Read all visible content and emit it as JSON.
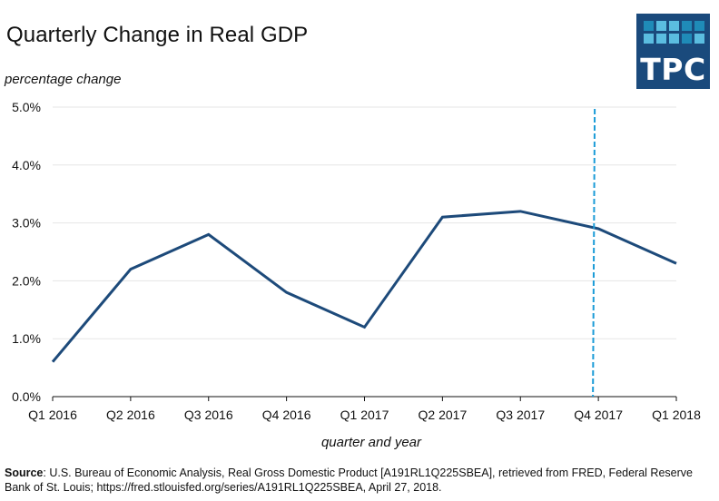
{
  "header": {
    "title": "Quarterly Change in Real GDP",
    "logo_text": "TPC",
    "logo_bg": "#1a4a7c",
    "logo_cells": [
      "#1f8bb8",
      "#5bbde0",
      "#5bbde0",
      "#1f8bb8",
      "#1f8bb8",
      "#5bbde0",
      "#5bbde0",
      "#5bbde0",
      "#1f8bb8",
      "#5bbde0"
    ]
  },
  "footer": {
    "source_label": "Source",
    "source_text": ": U.S. Bureau of Economic Analysis, Real Gross Domestic Product [A191RL1Q225SBEA], retrieved from FRED, Federal Reserve Bank of St. Louis; https://fred.stlouisfed.org/series/A191RL1Q225SBEA, April 27, 2018."
  },
  "chart_data": {
    "type": "line",
    "title": "Quarterly Change in Real GDP",
    "xlabel": "quarter and year",
    "ylabel": "percentage change",
    "categories": [
      "Q1 2016",
      "Q2 2016",
      "Q3 2016",
      "Q4 2016",
      "Q1 2017",
      "Q2 2017",
      "Q3 2017",
      "Q4 2017",
      "Q1 2018"
    ],
    "series": [
      {
        "name": "Real GDP percent change",
        "values": [
          0.6,
          2.2,
          2.8,
          1.8,
          1.2,
          3.1,
          3.2,
          2.9,
          2.3
        ],
        "color": "#1d4a7a"
      }
    ],
    "ylim": [
      0,
      5
    ],
    "yticks": [
      0,
      1,
      2,
      3,
      4,
      5
    ],
    "ytick_labels": [
      "0.0%",
      "1.0%",
      "2.0%",
      "3.0%",
      "4.0%",
      "5.0%"
    ],
    "grid": true,
    "gridline_color": "#e6e6e6",
    "annotations": [
      {
        "type": "vertical-dashed-line",
        "x_category_position": 6.93,
        "color": "#1a9bd7"
      }
    ],
    "legend": "none"
  }
}
